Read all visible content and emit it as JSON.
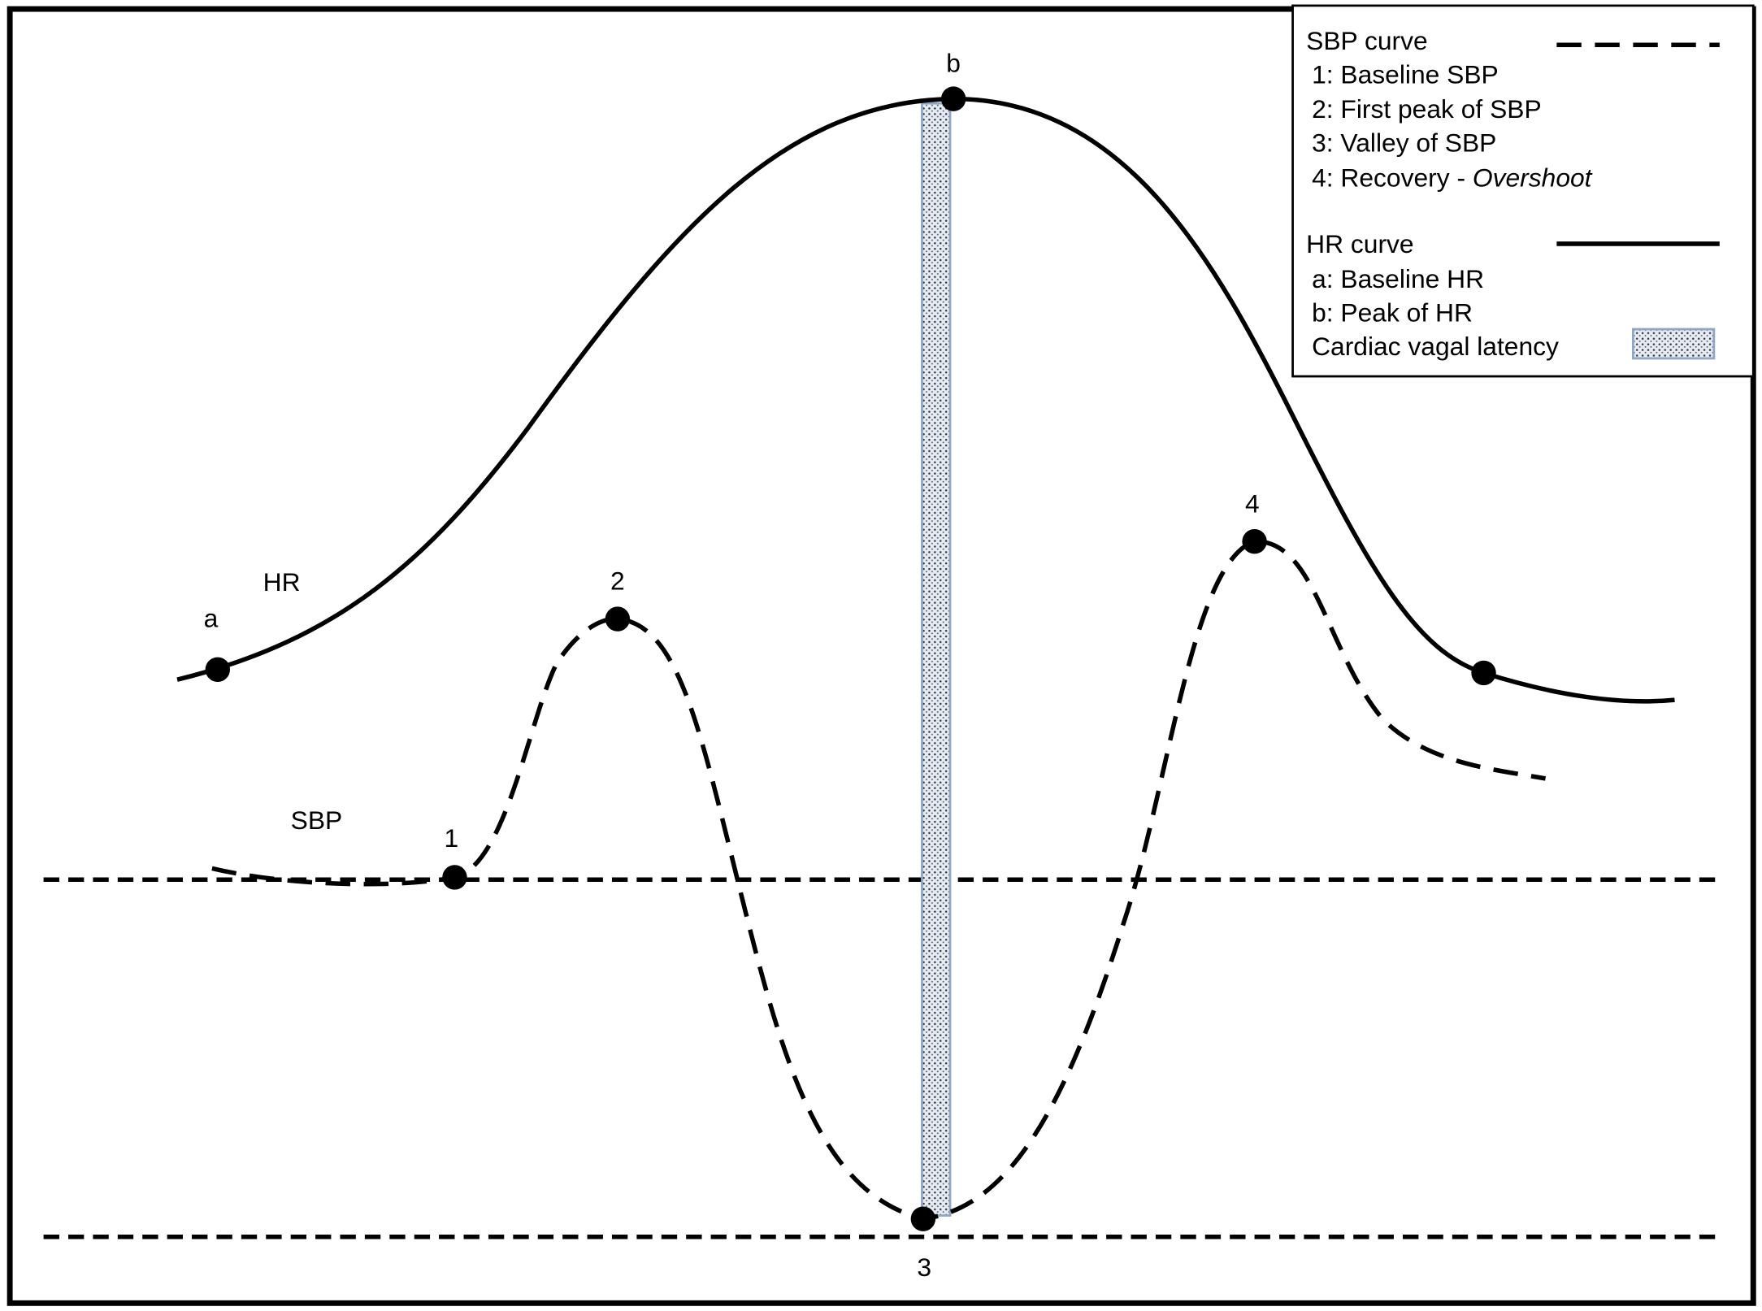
{
  "legend": {
    "sbp_title": "SBP curve",
    "sbp_items": [
      "1: Baseline SBP",
      "2: First peak of SBP",
      "3: Valley of SBP",
      "4: Recovery -"
    ],
    "sbp_recovery_emphasis": "Overshoot",
    "hr_title": "HR curve",
    "hr_items": [
      "a: Baseline HR",
      "b: Peak of HR"
    ],
    "latency": "Cardiac vagal latency"
  },
  "labels": {
    "hr_curve": "HR",
    "sbp_curve": "SBP",
    "a": "a",
    "b": "b",
    "p1": "1",
    "p2": "2",
    "p3": "3",
    "p4": "4"
  }
}
